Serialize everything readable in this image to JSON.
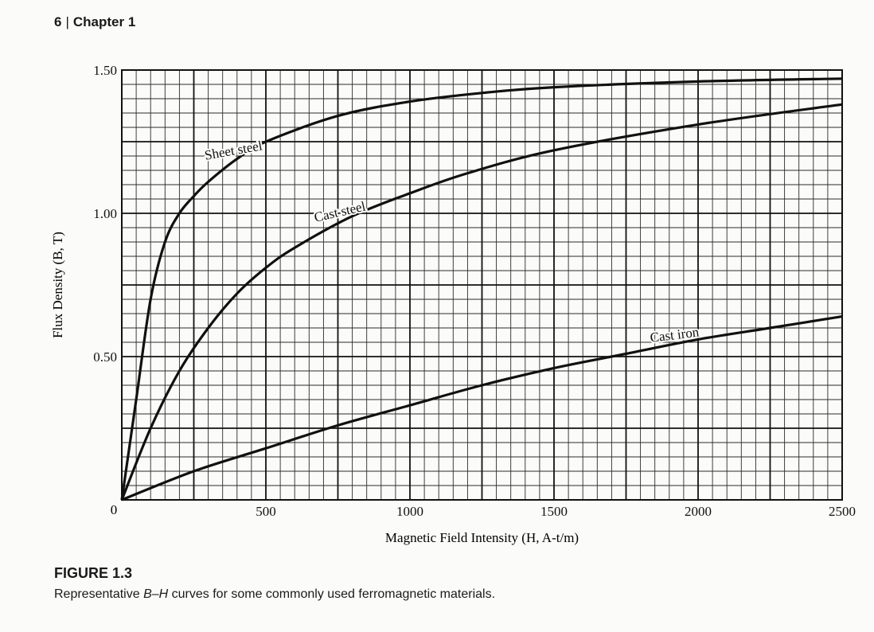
{
  "header": {
    "page_number": "6",
    "chapter": "Chapter 1"
  },
  "caption": {
    "label": "FIGURE 1.3",
    "text_b": "B",
    "text_dash": "–",
    "text_h": "H",
    "text_rest": " curves for some commonly used ferromagnetic materials.",
    "text_prefix": "Representative "
  },
  "chart_data": {
    "type": "line",
    "title": "",
    "xlabel": "Magnetic Field Intensity (H, A-t/m)",
    "ylabel": "Flux Density (B, T)",
    "xlim": [
      0,
      2500
    ],
    "ylim": [
      0,
      1.5
    ],
    "x_ticks": [
      0,
      500,
      1000,
      1500,
      2000,
      2500
    ],
    "x_tick_labels": [
      "0",
      "500",
      "1000",
      "1500",
      "2000",
      "2500"
    ],
    "y_ticks": [
      0.5,
      1.0,
      1.5
    ],
    "y_tick_labels": [
      "0.50",
      "1.00",
      "1.50"
    ],
    "grid": true,
    "grid_minor_x": 50,
    "grid_minor_y": 0.05,
    "series": [
      {
        "name": "Sheet steel",
        "x": [
          0,
          50,
          100,
          150,
          200,
          250,
          300,
          400,
          500,
          750,
          1000,
          1250,
          1500,
          2000,
          2500
        ],
        "y": [
          0,
          0.35,
          0.7,
          0.9,
          1.0,
          1.06,
          1.11,
          1.19,
          1.25,
          1.34,
          1.39,
          1.42,
          1.44,
          1.46,
          1.47
        ]
      },
      {
        "name": "Cast steel",
        "x": [
          0,
          100,
          200,
          300,
          400,
          500,
          600,
          800,
          1000,
          1200,
          1500,
          2000,
          2500
        ],
        "y": [
          0,
          0.25,
          0.45,
          0.6,
          0.72,
          0.81,
          0.88,
          0.99,
          1.07,
          1.14,
          1.22,
          1.31,
          1.38
        ]
      },
      {
        "name": "Cast iron",
        "x": [
          0,
          250,
          500,
          750,
          1000,
          1250,
          1500,
          1750,
          2000,
          2250,
          2500
        ],
        "y": [
          0,
          0.1,
          0.18,
          0.26,
          0.33,
          0.4,
          0.46,
          0.51,
          0.56,
          0.6,
          0.64
        ]
      }
    ]
  }
}
